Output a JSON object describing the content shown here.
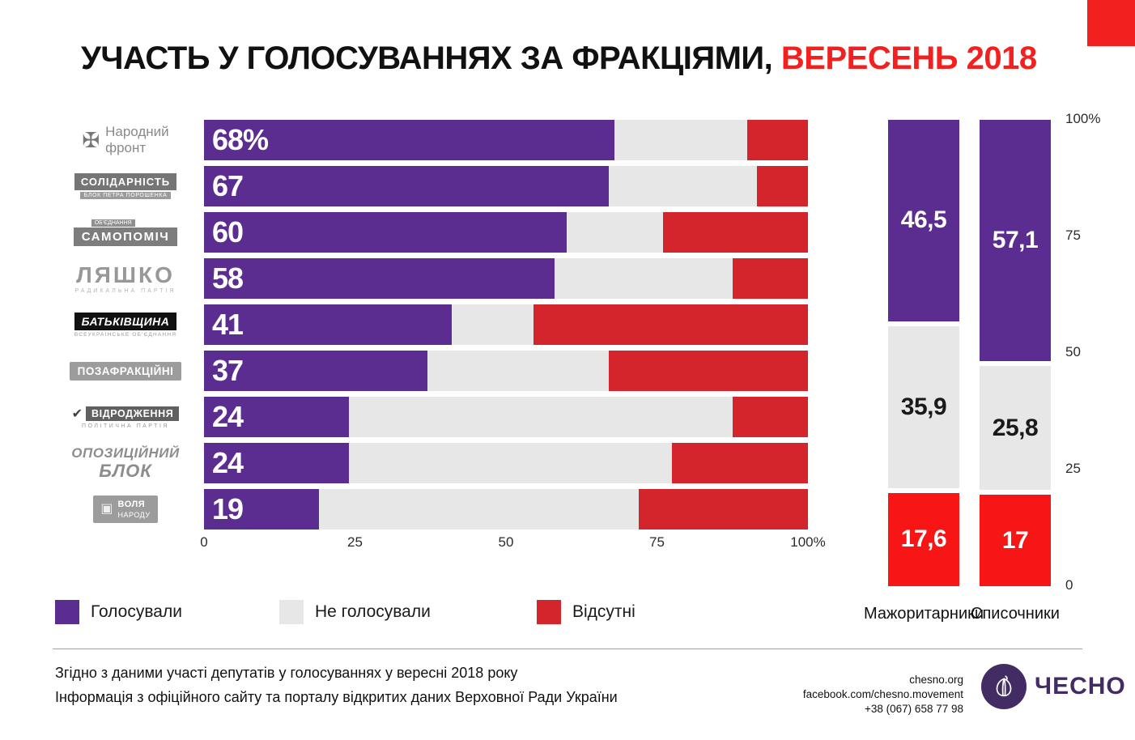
{
  "title": {
    "black": "УЧАСТЬ У ГОЛОСУВАННЯХ ЗА ФРАКЦІЯМИ, ",
    "red": "ВЕРЕСЕНЬ 2018"
  },
  "colors": {
    "voted": "#5b2d90",
    "not_voted": "#e7e7e7",
    "absent": "#d4252c",
    "absent_bright": "#f71515",
    "title_red": "#f32020",
    "corner_red": "#f32020",
    "brand_purple": "#432c63"
  },
  "parties": [
    {
      "variant": "narodnyi-front",
      "icon": "✠",
      "main": "Народний",
      "sub": "фронт"
    },
    {
      "variant": "solidarnist",
      "main": "СОЛІДАРНІСТЬ",
      "sub": "БЛОК ПЕТРА ПОРОШЕНКА"
    },
    {
      "variant": "samopomich",
      "main": "САМОПОМІЧ",
      "sub": "ОБ'ЄДНАННЯ"
    },
    {
      "variant": "lyashko",
      "main": "ЛЯШКО",
      "sub": "РАДИКАЛЬНА ПАРТІЯ"
    },
    {
      "variant": "batkivshchyna",
      "main": "БАТЬКІВЩИНА",
      "sub": "ВСЕУКРАЇНСЬКЕ ОБ'ЄДНАННЯ"
    },
    {
      "variant": "pozafraktsiini",
      "main": "ПОЗАФРАКЦІЙНІ"
    },
    {
      "variant": "vidrodzhennya",
      "icon": "✔",
      "main": "ВІДРОДЖЕННЯ",
      "sub": "ПОЛІТИЧНА ПАРТІЯ"
    },
    {
      "variant": "opoblok",
      "main": "ОПОЗИЦІЙНИЙ",
      "sub": "БЛОК"
    },
    {
      "variant": "volya-narodu",
      "icon": "▣",
      "main": "ВОЛЯ",
      "sub": "НАРОДУ"
    }
  ],
  "chart_data": [
    {
      "type": "bar",
      "orientation": "horizontal",
      "stacked": true,
      "title": "Участь у голосуваннях за фракціями, вересень 2018",
      "categories": [
        "Народний фронт",
        "Солідарність (Блок Петра Порошенка)",
        "Об'єднання Самопоміч",
        "Радикальна партія Ляшка",
        "Батьківщина",
        "Позафракційні",
        "Відродження",
        "Опозиційний блок",
        "Воля народу"
      ],
      "series": [
        {
          "name": "Голосували",
          "values": [
            68,
            67,
            60,
            58,
            41,
            37,
            24,
            24,
            19
          ]
        },
        {
          "name": "Не голосували",
          "values": [
            22,
            24.5,
            16,
            29.5,
            13.5,
            30,
            63.5,
            53.5,
            53
          ]
        },
        {
          "name": "Відсутні",
          "values": [
            10,
            8.5,
            24,
            12.5,
            45.5,
            33,
            12.5,
            22.5,
            28
          ]
        }
      ],
      "value_labels": [
        "68%",
        "67",
        "60",
        "58",
        "41",
        "37",
        "24",
        "24",
        "19"
      ],
      "xlim": [
        0,
        100
      ],
      "xticks": [
        "0",
        "25",
        "50",
        "75",
        "100%"
      ],
      "legend_position": "bottom",
      "grid": false
    },
    {
      "type": "bar",
      "orientation": "vertical",
      "stacked": true,
      "categories": [
        "Мажоритарники",
        "Списочники"
      ],
      "series": [
        {
          "name": "Голосували",
          "values": [
            46.5,
            57.1
          ]
        },
        {
          "name": "Не голосували",
          "values": [
            35.9,
            25.8
          ]
        },
        {
          "name": "Відсутні",
          "values": [
            17.6,
            17
          ]
        }
      ],
      "value_labels": [
        [
          "46,5",
          "35,9",
          "17,6"
        ],
        [
          "57,1",
          "25,8",
          "17"
        ]
      ],
      "ylim": [
        0,
        100
      ],
      "yticks": [
        "100%",
        "75",
        "50",
        "25",
        "0"
      ],
      "grid": false
    }
  ],
  "legend": [
    {
      "label": "Голосували",
      "key": "voted"
    },
    {
      "label": "Не голосували",
      "key": "not_voted"
    },
    {
      "label": "Відсутні",
      "key": "absent"
    }
  ],
  "footer": {
    "line1": "Згідно з даними участі депутатів у голосуваннях у вересні 2018 року",
    "line2": "Інформація з офіційного сайту та порталу відкритих даних Верховної Ради України",
    "website": "chesno.org",
    "facebook": "facebook.com/chesno.movement",
    "phone": "+38 (067) 658 77 98",
    "brand": "ЧЕСНО"
  }
}
